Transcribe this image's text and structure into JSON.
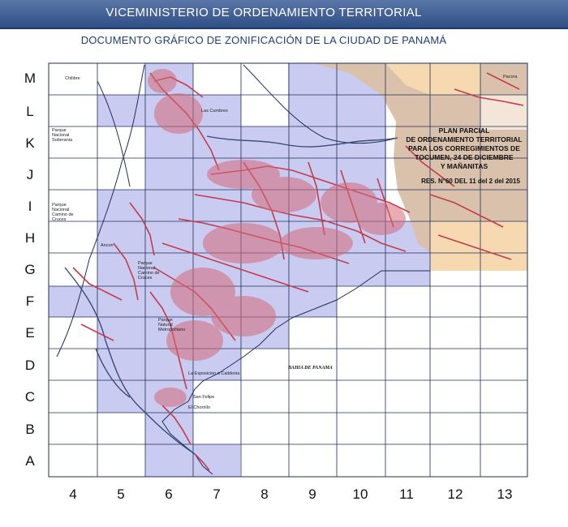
{
  "header": {
    "title": "VICEMINISTERIO DE ORDENAMIENTO TERRITORIAL",
    "subtitle": "DOCUMENTO GRÁFICO DE ZONIFICACIÓN DE LA CIUDAD DE PANAMÁ"
  },
  "grid": {
    "rows": [
      "M",
      "L",
      "K",
      "J",
      "I",
      "H",
      "G",
      "F",
      "E",
      "D",
      "C",
      "B",
      "A"
    ],
    "columns": [
      "4",
      "5",
      "6",
      "7",
      "8",
      "9",
      "10",
      "11",
      "12",
      "13"
    ]
  },
  "plan_parcial": {
    "title_lines": [
      "PLAN PARCIAL",
      "DE ORDENAMIENTO TERRITORIAL",
      "PARA LOS CORREGIMIENTOS DE",
      "TOCUMEN, 24 DE DICIEMBRE",
      "Y MAÑANITAS"
    ],
    "resolution": "RES. N°60 DEL 11 del 2 del 2015"
  },
  "place_labels": {
    "chilibre": "Chilibre",
    "pacora": "Pacora",
    "soberania": "Parque Nacional Soberania",
    "camino_cruces": "Parque Nacional Camino de Cruces",
    "camino_cruces_2": "Parque Nacional Camino de Cruces",
    "las_cumbres": "Las Cumbres",
    "ancon": "Ancon",
    "parque_metro": "Parque Natural Metropolitano",
    "exposicion": "La Exposicion o Calidonia",
    "san_felipe": "San Felipe",
    "el_chorrillo": "El Chorrillo",
    "bahia": "BAHIA DE PANAMA"
  },
  "colors": {
    "banner": "#3f5e94",
    "zone_fill": "#c9cbf1",
    "plan_fill": "#d9c1ac",
    "plan_fill_light": "#f6d9b0",
    "urban": "#c43c4c",
    "grid_line": "#1f2f5a"
  }
}
